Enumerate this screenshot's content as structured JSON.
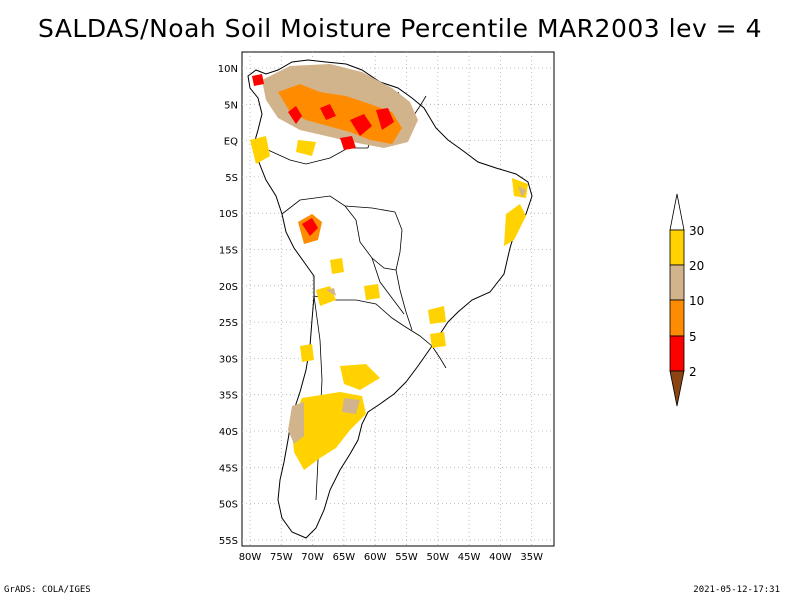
{
  "title": "SALDAS/Noah Soil Moisture Percentile MAR2003 lev = 4",
  "map": {
    "lat_ticks": [
      "10N",
      "5N",
      "EQ",
      "5S",
      "10S",
      "15S",
      "20S",
      "25S",
      "30S",
      "35S",
      "40S",
      "45S",
      "50S",
      "55S"
    ],
    "lon_ticks": [
      "80W",
      "75W",
      "70W",
      "65W",
      "60W",
      "55W",
      "50W",
      "45W",
      "40W",
      "35W"
    ]
  },
  "colorbar": {
    "labels": [
      "30",
      "20",
      "10",
      "5",
      "2"
    ],
    "colors": {
      "above_30": "#ffffff",
      "b20_30": "#ffd200",
      "b10_20": "#d2b48c",
      "b5_10": "#ff8c00",
      "b2_5": "#ff0000",
      "below_2": "#8b4513"
    }
  },
  "footer": {
    "left": "GrADS: COLA/IGES",
    "right": "2021-05-12-17:31"
  }
}
